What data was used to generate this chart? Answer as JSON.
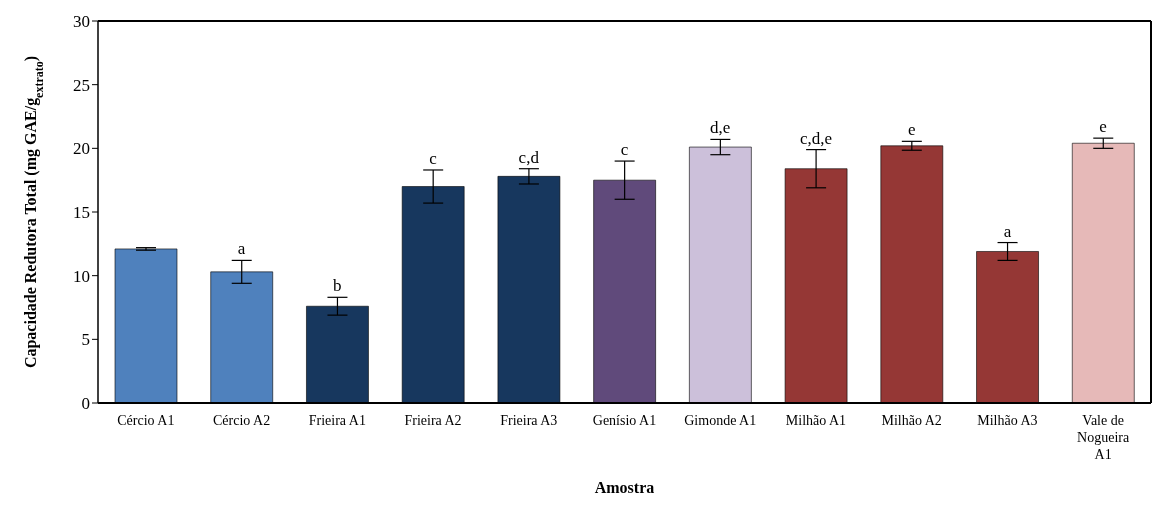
{
  "chart_data": {
    "type": "bar",
    "xlabel": "Amostra",
    "ylabel": "Capacidade Redutora Total (mg GAE/g$_{extrato}$)",
    "categories": [
      "Cércio A1",
      "Cércio A2",
      "Frieira A1",
      "Frieira A2",
      "Frieira A3",
      "Genísio A1",
      "Gimonde A1",
      "Milhão A1",
      "Milhão A2",
      "Milhão A3",
      "Vale de Nogueira A1"
    ],
    "values": [
      12.1,
      10.3,
      7.6,
      17.0,
      17.8,
      17.5,
      20.1,
      18.4,
      20.2,
      11.9,
      20.4
    ],
    "errors": [
      0.1,
      0.9,
      0.7,
      1.3,
      0.6,
      1.5,
      0.6,
      1.5,
      0.35,
      0.7,
      0.4
    ],
    "colors": [
      "#4f81bd",
      "#4f81bd",
      "#17375e",
      "#17375e",
      "#17375e",
      "#604a7b",
      "#ccc0da",
      "#953735",
      "#953735",
      "#953735",
      "#e6b9b8"
    ],
    "ylim": [
      0,
      30
    ],
    "yticks": [
      0,
      5,
      10,
      15,
      20,
      25,
      30
    ],
    "grid": false,
    "legend": false,
    "annotations": [
      {
        "text": "a",
        "x": "Cércio A2",
        "y": 11.2
      },
      {
        "text": "b",
        "x": "Frieira A1",
        "y": 8.3
      },
      {
        "text": "c",
        "x": "Frieira A2",
        "y": 18.3
      },
      {
        "text": "c,d",
        "x": "Frieira A3",
        "y": 18.4
      },
      {
        "text": "c",
        "x": "Genísio A1",
        "y": 19.0
      },
      {
        "text": "d,e",
        "x": "Gimonde A1",
        "y": 20.7
      },
      {
        "text": "c,d,e",
        "x": "Milhão A1",
        "y": 19.9
      },
      {
        "text": "e",
        "x": "Milhão A2",
        "y": 20.55
      },
      {
        "text": "a",
        "x": "Milhão A3",
        "y": 12.6
      },
      {
        "text": "e",
        "x": "Vale de Nogueira A1",
        "y": 20.8
      }
    ]
  }
}
